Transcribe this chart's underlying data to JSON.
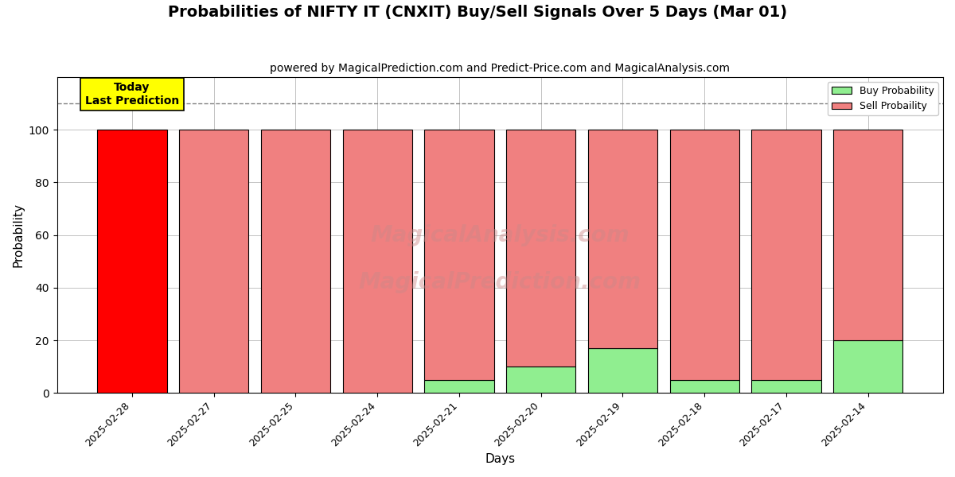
{
  "title": "Probabilities of NIFTY IT (CNXIT) Buy/Sell Signals Over 5 Days (Mar 01)",
  "subtitle": "powered by MagicalPrediction.com and Predict-Price.com and MagicalAnalysis.com",
  "xlabel": "Days",
  "ylabel": "Probability",
  "dates": [
    "2025-02-28",
    "2025-02-27",
    "2025-02-25",
    "2025-02-24",
    "2025-02-21",
    "2025-02-20",
    "2025-02-19",
    "2025-02-18",
    "2025-02-17",
    "2025-02-14"
  ],
  "sell_prob": [
    100,
    100,
    100,
    100,
    95,
    90,
    83,
    95,
    95,
    80
  ],
  "buy_prob": [
    0,
    0,
    0,
    0,
    5,
    10,
    17,
    5,
    5,
    20
  ],
  "today_bar_color": "#ff0000",
  "other_sell_color": "#f08080",
  "buy_color": "#90ee90",
  "today_box_color": "#ffff00",
  "today_label": "Today\nLast Prediction",
  "dashed_line_y": 110,
  "ylim": [
    0,
    120
  ],
  "yticks": [
    0,
    20,
    40,
    60,
    80,
    100
  ],
  "legend_buy_label": "Buy Probability",
  "legend_sell_label": "Sell Probaility",
  "bar_edge_color": "#000000",
  "bar_width": 0.85,
  "grid_color": "#aaaaaa",
  "background_color": "#ffffff",
  "title_fontsize": 14,
  "subtitle_fontsize": 10,
  "watermark1_text": "MagicalAnalysis.com",
  "watermark2_text": "MagicalPrediction.com",
  "watermark_color": "#cc8888",
  "watermark_alpha": 0.45,
  "watermark_fontsize": 20
}
